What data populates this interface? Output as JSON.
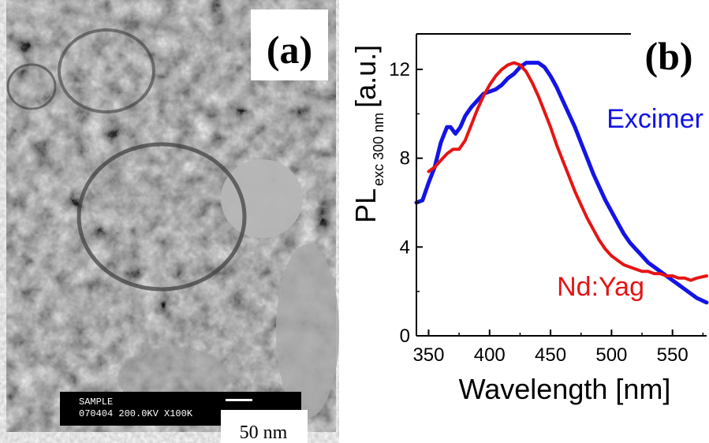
{
  "panel_a": {
    "label": "(a)",
    "scale_bar_text": "50 nm",
    "info_bar_line1": "SAMPLE",
    "info_bar_line2": "070404 200.0KV  X100K",
    "info_bar_scale": "50"
  },
  "chart_data": {
    "type": "line",
    "panel_label": "(b)",
    "xlabel": "Wavelength [nm]",
    "ylabel_main": "PL",
    "ylabel_sub": "exc 300 nm",
    "ylabel_unit": "[a.u.]",
    "xlim": [
      340,
      578
    ],
    "ylim": [
      0,
      13.6
    ],
    "xticks": [
      350,
      400,
      450,
      500,
      550
    ],
    "yticks": [
      0,
      4,
      8,
      12
    ],
    "grid": false,
    "series": [
      {
        "name": "Excimer",
        "color": "#1414e6",
        "x": [
          340,
          345,
          350,
          355,
          360,
          365,
          368,
          372,
          376,
          380,
          385,
          390,
          395,
          400,
          405,
          410,
          415,
          420,
          425,
          430,
          435,
          440,
          445,
          450,
          455,
          460,
          465,
          470,
          475,
          480,
          485,
          490,
          495,
          500,
          505,
          510,
          515,
          520,
          525,
          530,
          535,
          540,
          545,
          550,
          555,
          560,
          565,
          570,
          578
        ],
        "y": [
          6.0,
          6.1,
          6.9,
          7.6,
          8.7,
          9.4,
          9.4,
          9.1,
          9.4,
          9.9,
          10.3,
          10.6,
          10.9,
          11.0,
          11.1,
          11.3,
          11.6,
          11.8,
          12.1,
          12.3,
          12.3,
          12.3,
          12.1,
          11.7,
          11.2,
          10.6,
          10.0,
          9.4,
          8.7,
          8.0,
          7.3,
          6.7,
          6.1,
          5.6,
          5.1,
          4.6,
          4.2,
          3.9,
          3.6,
          3.3,
          3.1,
          2.9,
          2.7,
          2.5,
          2.3,
          2.1,
          1.9,
          1.7,
          1.5
        ]
      },
      {
        "name": "Nd:Yag",
        "color": "#e61414",
        "x": [
          350,
          355,
          360,
          365,
          370,
          375,
          380,
          385,
          390,
          395,
          400,
          405,
          410,
          415,
          420,
          425,
          430,
          435,
          440,
          445,
          450,
          455,
          460,
          465,
          470,
          475,
          480,
          485,
          490,
          495,
          500,
          505,
          510,
          515,
          520,
          525,
          530,
          535,
          540,
          545,
          550,
          555,
          560,
          565,
          570,
          578
        ],
        "y": [
          7.4,
          7.6,
          7.9,
          8.2,
          8.4,
          8.4,
          8.8,
          9.5,
          10.2,
          10.8,
          11.3,
          11.7,
          12.0,
          12.2,
          12.3,
          12.2,
          11.9,
          11.4,
          10.8,
          10.1,
          9.4,
          8.6,
          7.9,
          7.2,
          6.5,
          5.9,
          5.3,
          4.8,
          4.3,
          3.9,
          3.6,
          3.4,
          3.2,
          3.1,
          3.0,
          2.9,
          2.9,
          2.8,
          2.8,
          2.7,
          2.7,
          2.6,
          2.6,
          2.5,
          2.6,
          2.7
        ]
      }
    ]
  }
}
